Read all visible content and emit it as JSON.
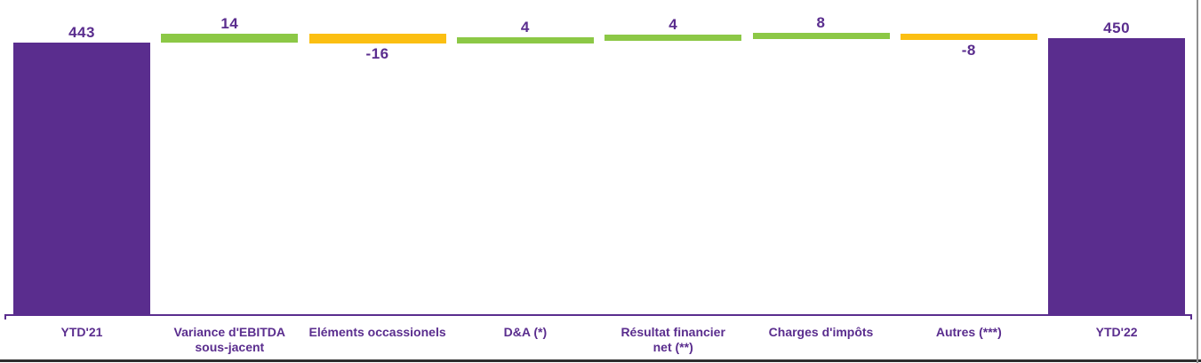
{
  "chart_data": {
    "type": "bar",
    "subtype": "waterfall",
    "title": "",
    "xlabel": "",
    "ylabel": "",
    "ylim": [
      0,
      460
    ],
    "grid": false,
    "legend": "none",
    "value_labels_shown": true,
    "categories": [
      "YTD'21",
      "Variance d'EBITDA sous-jacent",
      "Eléments occassionels",
      "D&A (*)",
      "Résultat financier net (**)",
      "Charges d'impôts",
      "Autres (***)",
      "YTD'22"
    ],
    "bars": [
      {
        "label": "YTD'21",
        "display_label": "YTD'21",
        "value": 443,
        "kind": "total",
        "value_label": "443"
      },
      {
        "label": "Variance d'EBITDA sous-jacent",
        "display_label": "Variance d'EBITDA\nsous-jacent",
        "value": 14,
        "kind": "increase",
        "value_label": "14"
      },
      {
        "label": "Eléments occassionels",
        "display_label": "Eléments occassionels",
        "value": -16,
        "kind": "decrease",
        "value_label": "-16"
      },
      {
        "label": "D&A (*)",
        "display_label": "D&A (*)",
        "value": 4,
        "kind": "increase",
        "value_label": "4"
      },
      {
        "label": "Résultat financier net (**)",
        "display_label": "Résultat financier\nnet (**)",
        "value": 4,
        "kind": "increase",
        "value_label": "4"
      },
      {
        "label": "Charges d'impôts",
        "display_label": "Charges d'impôts",
        "value": 8,
        "kind": "increase",
        "value_label": "8"
      },
      {
        "label": "Autres (***)",
        "display_label": "Autres (***)",
        "value": -8,
        "kind": "decrease",
        "value_label": "-8"
      },
      {
        "label": "YTD'22",
        "display_label": "YTD'22",
        "value": 450,
        "kind": "total",
        "value_label": "450"
      }
    ],
    "colors": {
      "total": "#5A2D8E",
      "increase": "#8CC846",
      "decrease": "#FBBF12",
      "label_text": "#5A2D8E",
      "axis": "#5A2D8E",
      "bottom_edge": "#2E2E2E",
      "right_edge": "#8F8F8F"
    }
  }
}
